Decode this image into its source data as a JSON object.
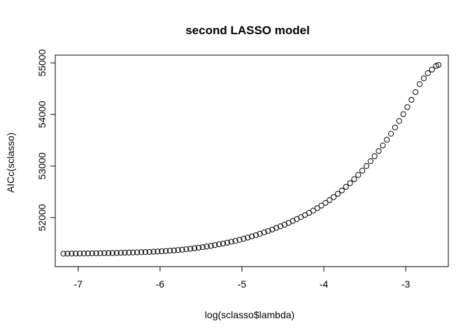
{
  "chart_data": {
    "type": "scatter",
    "title": "second LASSO model",
    "xlabel": "log(sclasso$lambda)",
    "ylabel": "AICc(sclasso)",
    "xlim": [
      -7.28,
      -2.48
    ],
    "ylim": [
      51050,
      55150
    ],
    "x_ticks": [
      -7,
      -6,
      -5,
      -4,
      -3
    ],
    "x_tick_labels": [
      "-7",
      "-6",
      "-5",
      "-4",
      "-3"
    ],
    "y_ticks": [
      52000,
      53000,
      54000,
      55000
    ],
    "y_tick_labels": [
      "52000",
      "53000",
      "54000",
      "55000"
    ],
    "grid": false,
    "legend": "none",
    "marker": "open-circle",
    "colors": {
      "point": "#000000",
      "axis": "#000000",
      "background": "#ffffff"
    },
    "x": [
      -7.18,
      -7.13,
      -7.08,
      -7.03,
      -6.98,
      -6.93,
      -6.88,
      -6.83,
      -6.78,
      -6.73,
      -6.68,
      -6.63,
      -6.58,
      -6.53,
      -6.48,
      -6.43,
      -6.38,
      -6.33,
      -6.28,
      -6.23,
      -6.18,
      -6.13,
      -6.08,
      -6.03,
      -5.98,
      -5.93,
      -5.88,
      -5.83,
      -5.78,
      -5.73,
      -5.68,
      -5.63,
      -5.58,
      -5.53,
      -5.48,
      -5.43,
      -5.38,
      -5.33,
      -5.28,
      -5.23,
      -5.18,
      -5.13,
      -5.08,
      -5.03,
      -4.98,
      -4.93,
      -4.88,
      -4.83,
      -4.78,
      -4.73,
      -4.68,
      -4.63,
      -4.58,
      -4.53,
      -4.48,
      -4.43,
      -4.38,
      -4.33,
      -4.28,
      -4.23,
      -4.18,
      -4.13,
      -4.08,
      -4.03,
      -3.98,
      -3.93,
      -3.88,
      -3.83,
      -3.78,
      -3.73,
      -3.68,
      -3.63,
      -3.58,
      -3.53,
      -3.48,
      -3.43,
      -3.38,
      -3.33,
      -3.28,
      -3.23,
      -3.18,
      -3.13,
      -3.08,
      -3.03,
      -2.98,
      -2.93,
      -2.88,
      -2.83,
      -2.78,
      -2.73,
      -2.68,
      -2.63,
      -2.6
    ],
    "y": [
      51300,
      51301,
      51302,
      51303,
      51304,
      51305,
      51306,
      51307,
      51308,
      51310,
      51311,
      51313,
      51314,
      51316,
      51318,
      51320,
      51322,
      51324,
      51326,
      51329,
      51332,
      51335,
      51339,
      51343,
      51347,
      51352,
      51358,
      51364,
      51371,
      51378,
      51387,
      51396,
      51406,
      51416,
      51428,
      51440,
      51453,
      51467,
      51482,
      51497,
      51514,
      51531,
      51549,
      51569,
      51590,
      51612,
      51636,
      51660,
      51686,
      51713,
      51741,
      51770,
      51800,
      51832,
      51864,
      51898,
      51934,
      51970,
      52009,
      52050,
      52092,
      52136,
      52184,
      52233,
      52285,
      52340,
      52398,
      52460,
      52525,
      52595,
      52668,
      52745,
      52826,
      52911,
      53000,
      53093,
      53190,
      53292,
      53398,
      53510,
      53626,
      53747,
      53873,
      54005,
      54142,
      54285,
      54433,
      54587,
      54700,
      54800,
      54870,
      54940,
      54960
    ]
  }
}
